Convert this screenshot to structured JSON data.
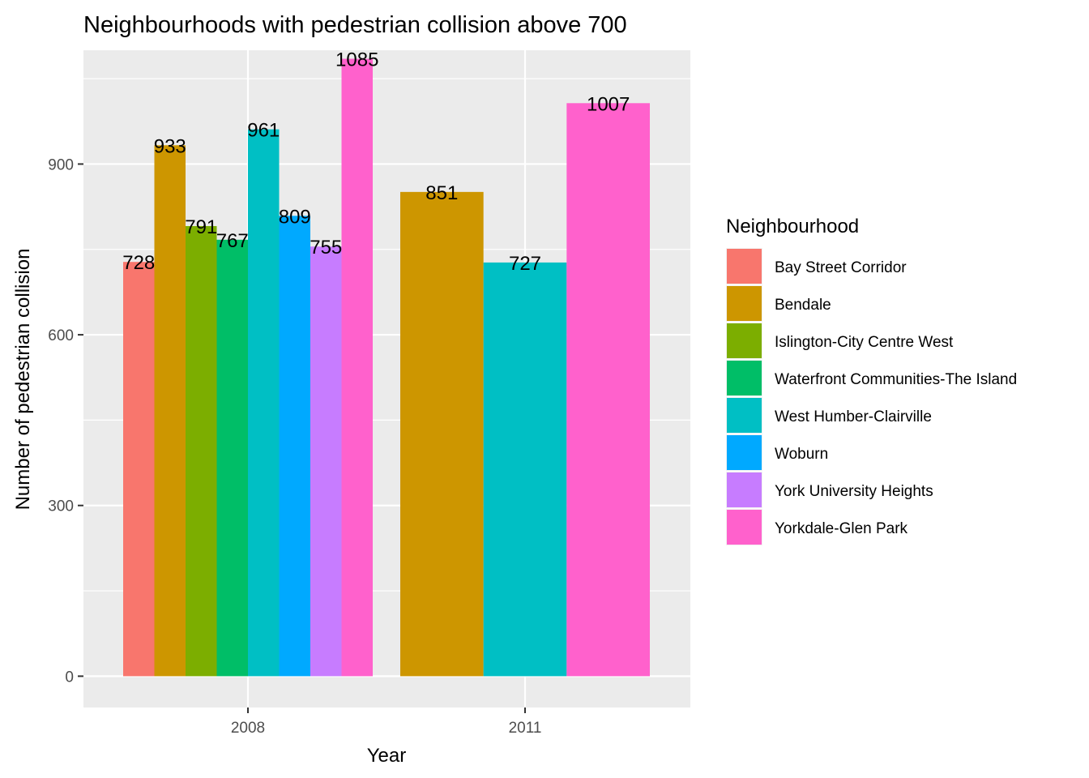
{
  "chart_data": {
    "type": "bar",
    "title": "Neighbourhoods with pedestrian collision above 700",
    "xlabel": "Year",
    "ylabel": "Number of pedestrian collision",
    "ylim": [
      -55,
      1100
    ],
    "yticks": [
      0,
      300,
      600,
      900
    ],
    "grid": true,
    "legend": {
      "title": "Neighbourhood",
      "position": "right"
    },
    "categories": [
      "2008",
      "2011"
    ],
    "series": [
      {
        "name": "Bay Street Corridor",
        "color": "#F8766D",
        "values": [
          728,
          null
        ]
      },
      {
        "name": "Bendale",
        "color": "#CD9600",
        "values": [
          933,
          851
        ]
      },
      {
        "name": "Islington-City Centre West",
        "color": "#7CAE00",
        "values": [
          791,
          null
        ]
      },
      {
        "name": "Waterfront Communities-The Island",
        "color": "#00BE67",
        "values": [
          767,
          null
        ]
      },
      {
        "name": "West Humber-Clairville",
        "color": "#00BFC4",
        "values": [
          961,
          727
        ]
      },
      {
        "name": "Woburn",
        "color": "#00A9FF",
        "values": [
          809,
          null
        ]
      },
      {
        "name": "York University Heights",
        "color": "#C77CFF",
        "values": [
          755,
          null
        ]
      },
      {
        "name": "Yorkdale-Glen Park",
        "color": "#FF61CC",
        "values": [
          1085,
          1007
        ]
      }
    ]
  }
}
